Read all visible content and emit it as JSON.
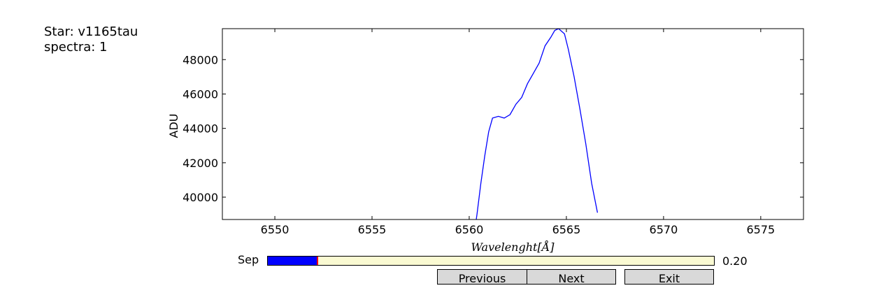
{
  "info": {
    "star": "Star: v1165tau",
    "spectra": "spectra: 1"
  },
  "chart_data": {
    "type": "line",
    "xlabel": "Wavelenght[Å]",
    "ylabel": "ADU",
    "xlim": [
      6547.3,
      6577.2
    ],
    "ylim": [
      38700,
      49800
    ],
    "xticks": [
      6550,
      6555,
      6560,
      6565,
      6570,
      6575
    ],
    "yticks": [
      40000,
      42000,
      44000,
      46000,
      48000
    ],
    "grid": false,
    "series": [
      {
        "color": "#0000ff",
        "x": [
          6560.2,
          6560.4,
          6560.6,
          6560.8,
          6561.0,
          6561.2,
          6561.5,
          6561.8,
          6562.1,
          6562.4,
          6562.7,
          6563.0,
          6563.3,
          6563.6,
          6563.9,
          6564.2,
          6564.4,
          6564.6,
          6564.9,
          6565.1,
          6565.4,
          6565.7,
          6566.0,
          6566.3,
          6566.6
        ],
        "y": [
          37400,
          39000,
          40800,
          42400,
          43800,
          44600,
          44700,
          44600,
          44800,
          45400,
          45800,
          46600,
          47200,
          47800,
          48800,
          49300,
          49700,
          49800,
          49500,
          48600,
          47000,
          45100,
          43100,
          40800,
          39100
        ]
      }
    ]
  },
  "slider": {
    "label": "Sep",
    "value": 0.2,
    "value_text": "0.20",
    "min": 0,
    "max": 1.8,
    "track_color": "#fafad2",
    "fill_color": "#0000ff",
    "marker_color": "#ff0000"
  },
  "buttons": {
    "previous": "Previous",
    "next": "Next",
    "exit": "Exit"
  }
}
